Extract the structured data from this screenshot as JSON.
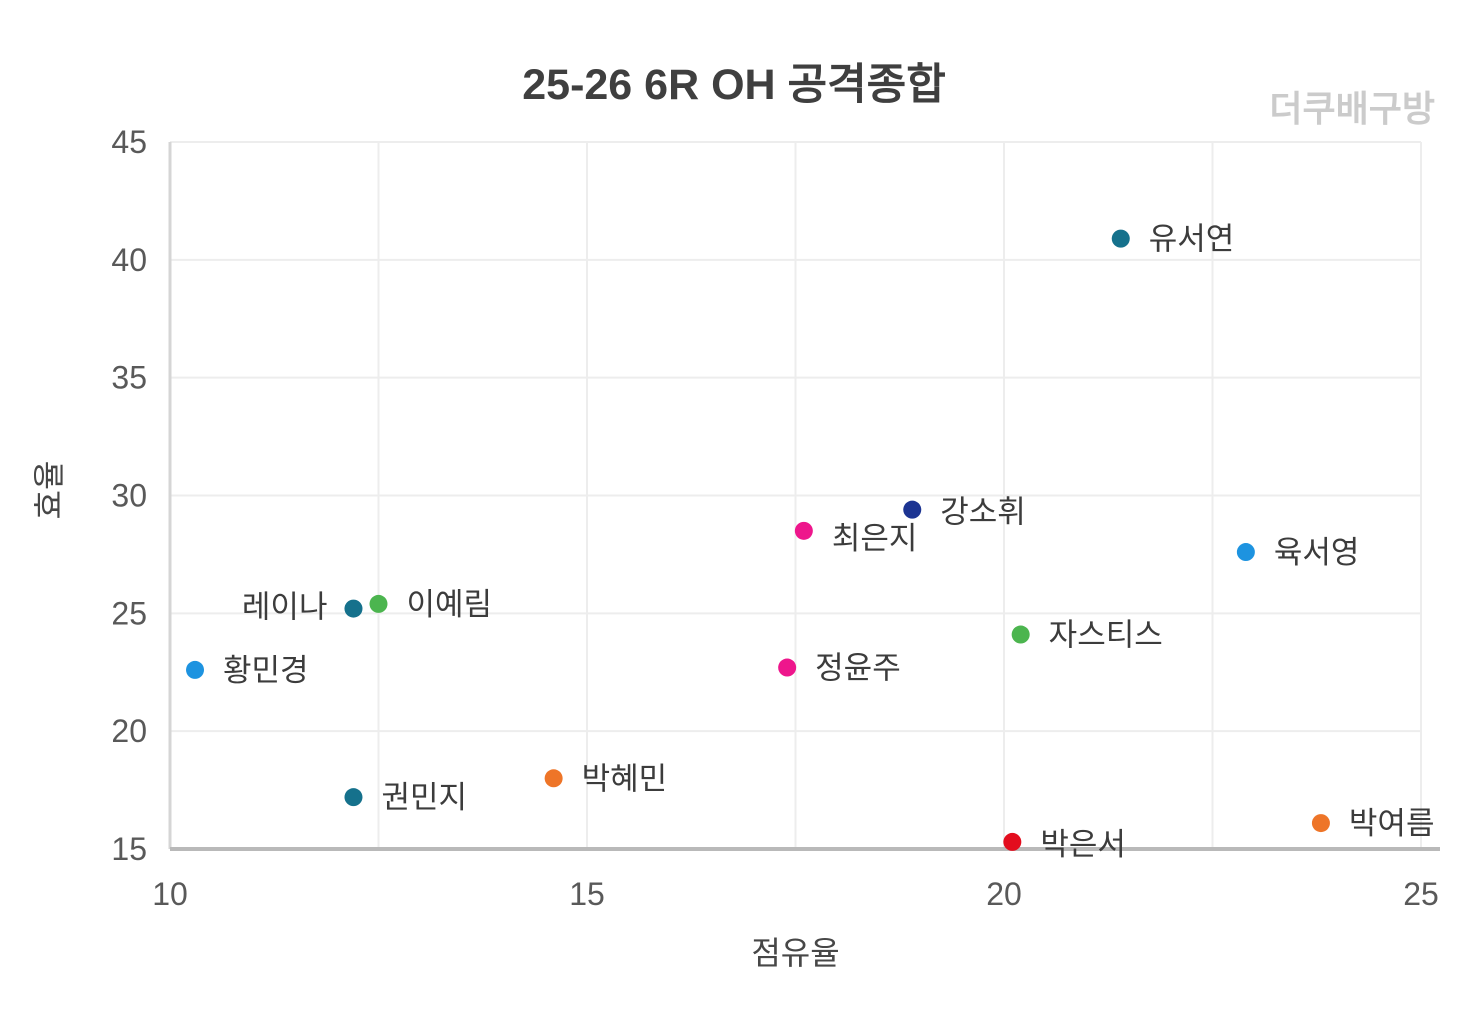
{
  "chart_data": {
    "type": "scatter",
    "title": "25-26 6R OH 공격종합",
    "watermark": "더쿠배구방",
    "xlabel": "점유율",
    "ylabel": "효율",
    "xlim": [
      10,
      25
    ],
    "ylim": [
      15,
      45
    ],
    "xticks": [
      10,
      15,
      20,
      25
    ],
    "xgrid": [
      10,
      12.5,
      15,
      17.5,
      20,
      22.5,
      25
    ],
    "yticks": [
      15,
      20,
      25,
      30,
      35,
      40,
      45
    ],
    "grid": true,
    "legend": "none",
    "marker_radius": 9,
    "palette": {
      "teal": "#15718c",
      "navy": "#1c3492",
      "magenta": "#ee168c",
      "blue": "#1d93e0",
      "green": "#4cb54f",
      "orange": "#ee7528",
      "red": "#e30d1e",
      "grid_color": "#ededed",
      "y_axis_color": "#d5d5d5",
      "x_axis_color": "#b9b9b9"
    },
    "points": [
      {
        "name": "유서연",
        "x": 21.4,
        "y": 40.9,
        "color": "#15718c",
        "label_side": "right",
        "label_dy": 0
      },
      {
        "name": "강소휘",
        "x": 18.9,
        "y": 29.4,
        "color": "#1c3492",
        "label_side": "right",
        "label_dy": 2
      },
      {
        "name": "최은지",
        "x": 17.6,
        "y": 28.5,
        "color": "#ee168c",
        "label_side": "right",
        "label_dy": 7
      },
      {
        "name": "육서영",
        "x": 22.9,
        "y": 27.6,
        "color": "#1d93e0",
        "label_side": "right",
        "label_dy": 0
      },
      {
        "name": "이예림",
        "x": 12.5,
        "y": 25.4,
        "color": "#4cb54f",
        "label_side": "right",
        "label_dy": 0
      },
      {
        "name": "레이나",
        "x": 12.2,
        "y": 25.2,
        "color": "#15718c",
        "label_side": "left",
        "label_dy": -2
      },
      {
        "name": "자스티스",
        "x": 20.2,
        "y": 24.1,
        "color": "#4cb54f",
        "label_side": "right",
        "label_dy": 0
      },
      {
        "name": "정윤주",
        "x": 17.4,
        "y": 22.7,
        "color": "#ee168c",
        "label_side": "right",
        "label_dy": 0
      },
      {
        "name": "황민경",
        "x": 10.3,
        "y": 22.6,
        "color": "#1d93e0",
        "label_side": "right",
        "label_dy": 0
      },
      {
        "name": "박혜민",
        "x": 14.6,
        "y": 18.0,
        "color": "#ee7528",
        "label_side": "right",
        "label_dy": 0
      },
      {
        "name": "권민지",
        "x": 12.2,
        "y": 17.2,
        "color": "#15718c",
        "label_side": "right",
        "label_dy": 0
      },
      {
        "name": "박여름",
        "x": 23.8,
        "y": 16.1,
        "color": "#ee7528",
        "label_side": "right",
        "label_dy": 0
      },
      {
        "name": "박은서",
        "x": 20.1,
        "y": 15.3,
        "color": "#e30d1e",
        "label_side": "right",
        "label_dy": 2
      }
    ]
  }
}
